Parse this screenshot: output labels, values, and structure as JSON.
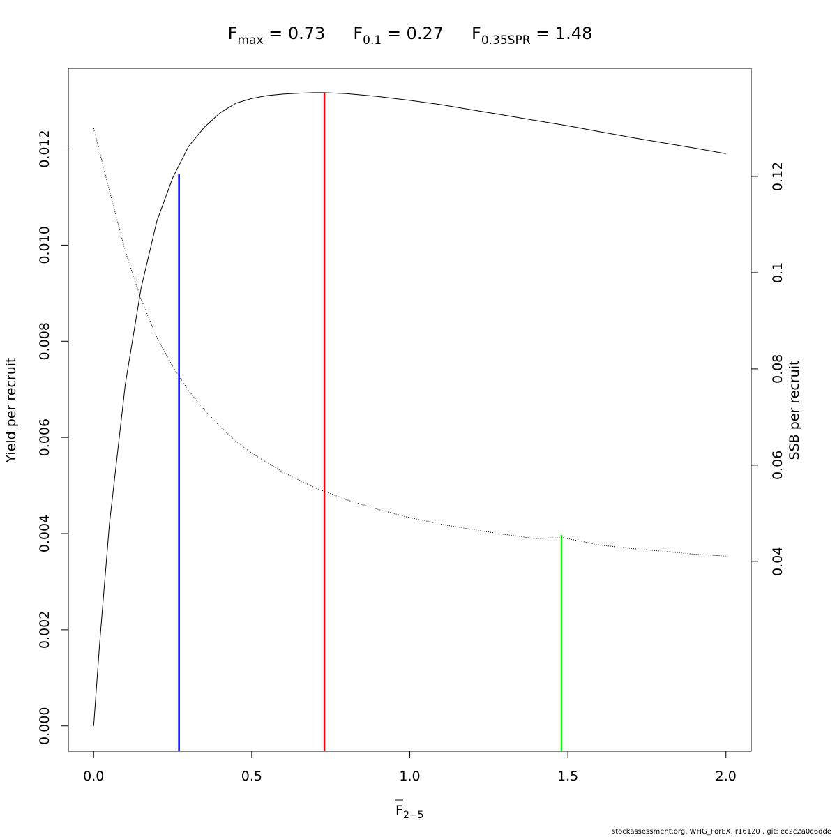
{
  "chart_data": {
    "type": "line",
    "title_parts": [
      {
        "base": "F",
        "sub": "max",
        "eq": " = 0.73"
      },
      {
        "base": "F",
        "sub": "0.1",
        "eq": " = 0.27"
      },
      {
        "base": "F",
        "sub": "0.35SPR",
        "eq": " = 1.48"
      }
    ],
    "xlabel": {
      "base": "F",
      "sub": "2−5",
      "overline": true
    },
    "ylabel_left": "Yield per recruit",
    "ylabel_right": "SSB per recruit",
    "xlim": [
      -0.08,
      2.08
    ],
    "ylim_left": [
      -0.000526,
      0.013676
    ],
    "ylim_right": [
      0.00055,
      0.14246
    ],
    "x_ticks": [
      "0.0",
      "0.5",
      "1.0",
      "1.5",
      "2.0"
    ],
    "y_left_ticks": [
      "0.000",
      "0.002",
      "0.004",
      "0.006",
      "0.008",
      "0.010",
      "0.012"
    ],
    "y_right_ticks": [
      "0.04",
      "0.06",
      "0.08",
      "0.1",
      "0.12"
    ],
    "series": [
      {
        "axis": "left",
        "style": "solid",
        "color": "#000000",
        "x": [
          0,
          0.02,
          0.05,
          0.1,
          0.15,
          0.2,
          0.25,
          0.3,
          0.35,
          0.4,
          0.45,
          0.5,
          0.55,
          0.6,
          0.65,
          0.7,
          0.73,
          0.8,
          0.9,
          1.0,
          1.1,
          1.2,
          1.3,
          1.4,
          1.5,
          1.6,
          1.7,
          1.8,
          1.9,
          2.0
        ],
        "values": [
          0,
          0.0018,
          0.0042,
          0.0071,
          0.0091,
          0.0105,
          0.0114,
          0.01205,
          0.01245,
          0.01275,
          0.01295,
          0.01305,
          0.01311,
          0.01314,
          0.01316,
          0.01317,
          0.01317,
          0.01315,
          0.01309,
          0.01301,
          0.01292,
          0.01281,
          0.0127,
          0.01259,
          0.01248,
          0.01236,
          0.01224,
          0.01213,
          0.01202,
          0.0119
        ]
      },
      {
        "axis": "right",
        "style": "dotted",
        "color": "#000000",
        "x": [
          0,
          0.05,
          0.1,
          0.15,
          0.2,
          0.25,
          0.3,
          0.35,
          0.4,
          0.45,
          0.5,
          0.6,
          0.7,
          0.8,
          0.9,
          1.0,
          1.1,
          1.2,
          1.3,
          1.4,
          1.48,
          1.6,
          1.7,
          1.8,
          1.9,
          2.0
        ],
        "values": [
          0.13,
          0.117,
          0.1045,
          0.0945,
          0.0865,
          0.0805,
          0.0755,
          0.0715,
          0.068,
          0.065,
          0.0625,
          0.0585,
          0.0553,
          0.0528,
          0.0508,
          0.0491,
          0.0477,
          0.0466,
          0.0456,
          0.0447,
          0.045,
          0.0434,
          0.0427,
          0.0421,
          0.0415,
          0.0411
        ]
      }
    ],
    "reference_lines": [
      {
        "name": "F0.1",
        "x": 0.27,
        "color": "#0000ff",
        "axis": "left",
        "y_top": 0.01148
      },
      {
        "name": "Fmax",
        "x": 0.73,
        "color": "#ff0000",
        "axis": "left",
        "y_top": 0.01317
      },
      {
        "name": "F0.35SPR",
        "x": 1.48,
        "color": "#00ff00",
        "axis": "right",
        "y_top": 0.0455
      }
    ],
    "grid": false,
    "legend": "none"
  },
  "footer": "stockassessment.org, WHG_ForEX, r16120 , git: ec2c2a0c6dde"
}
